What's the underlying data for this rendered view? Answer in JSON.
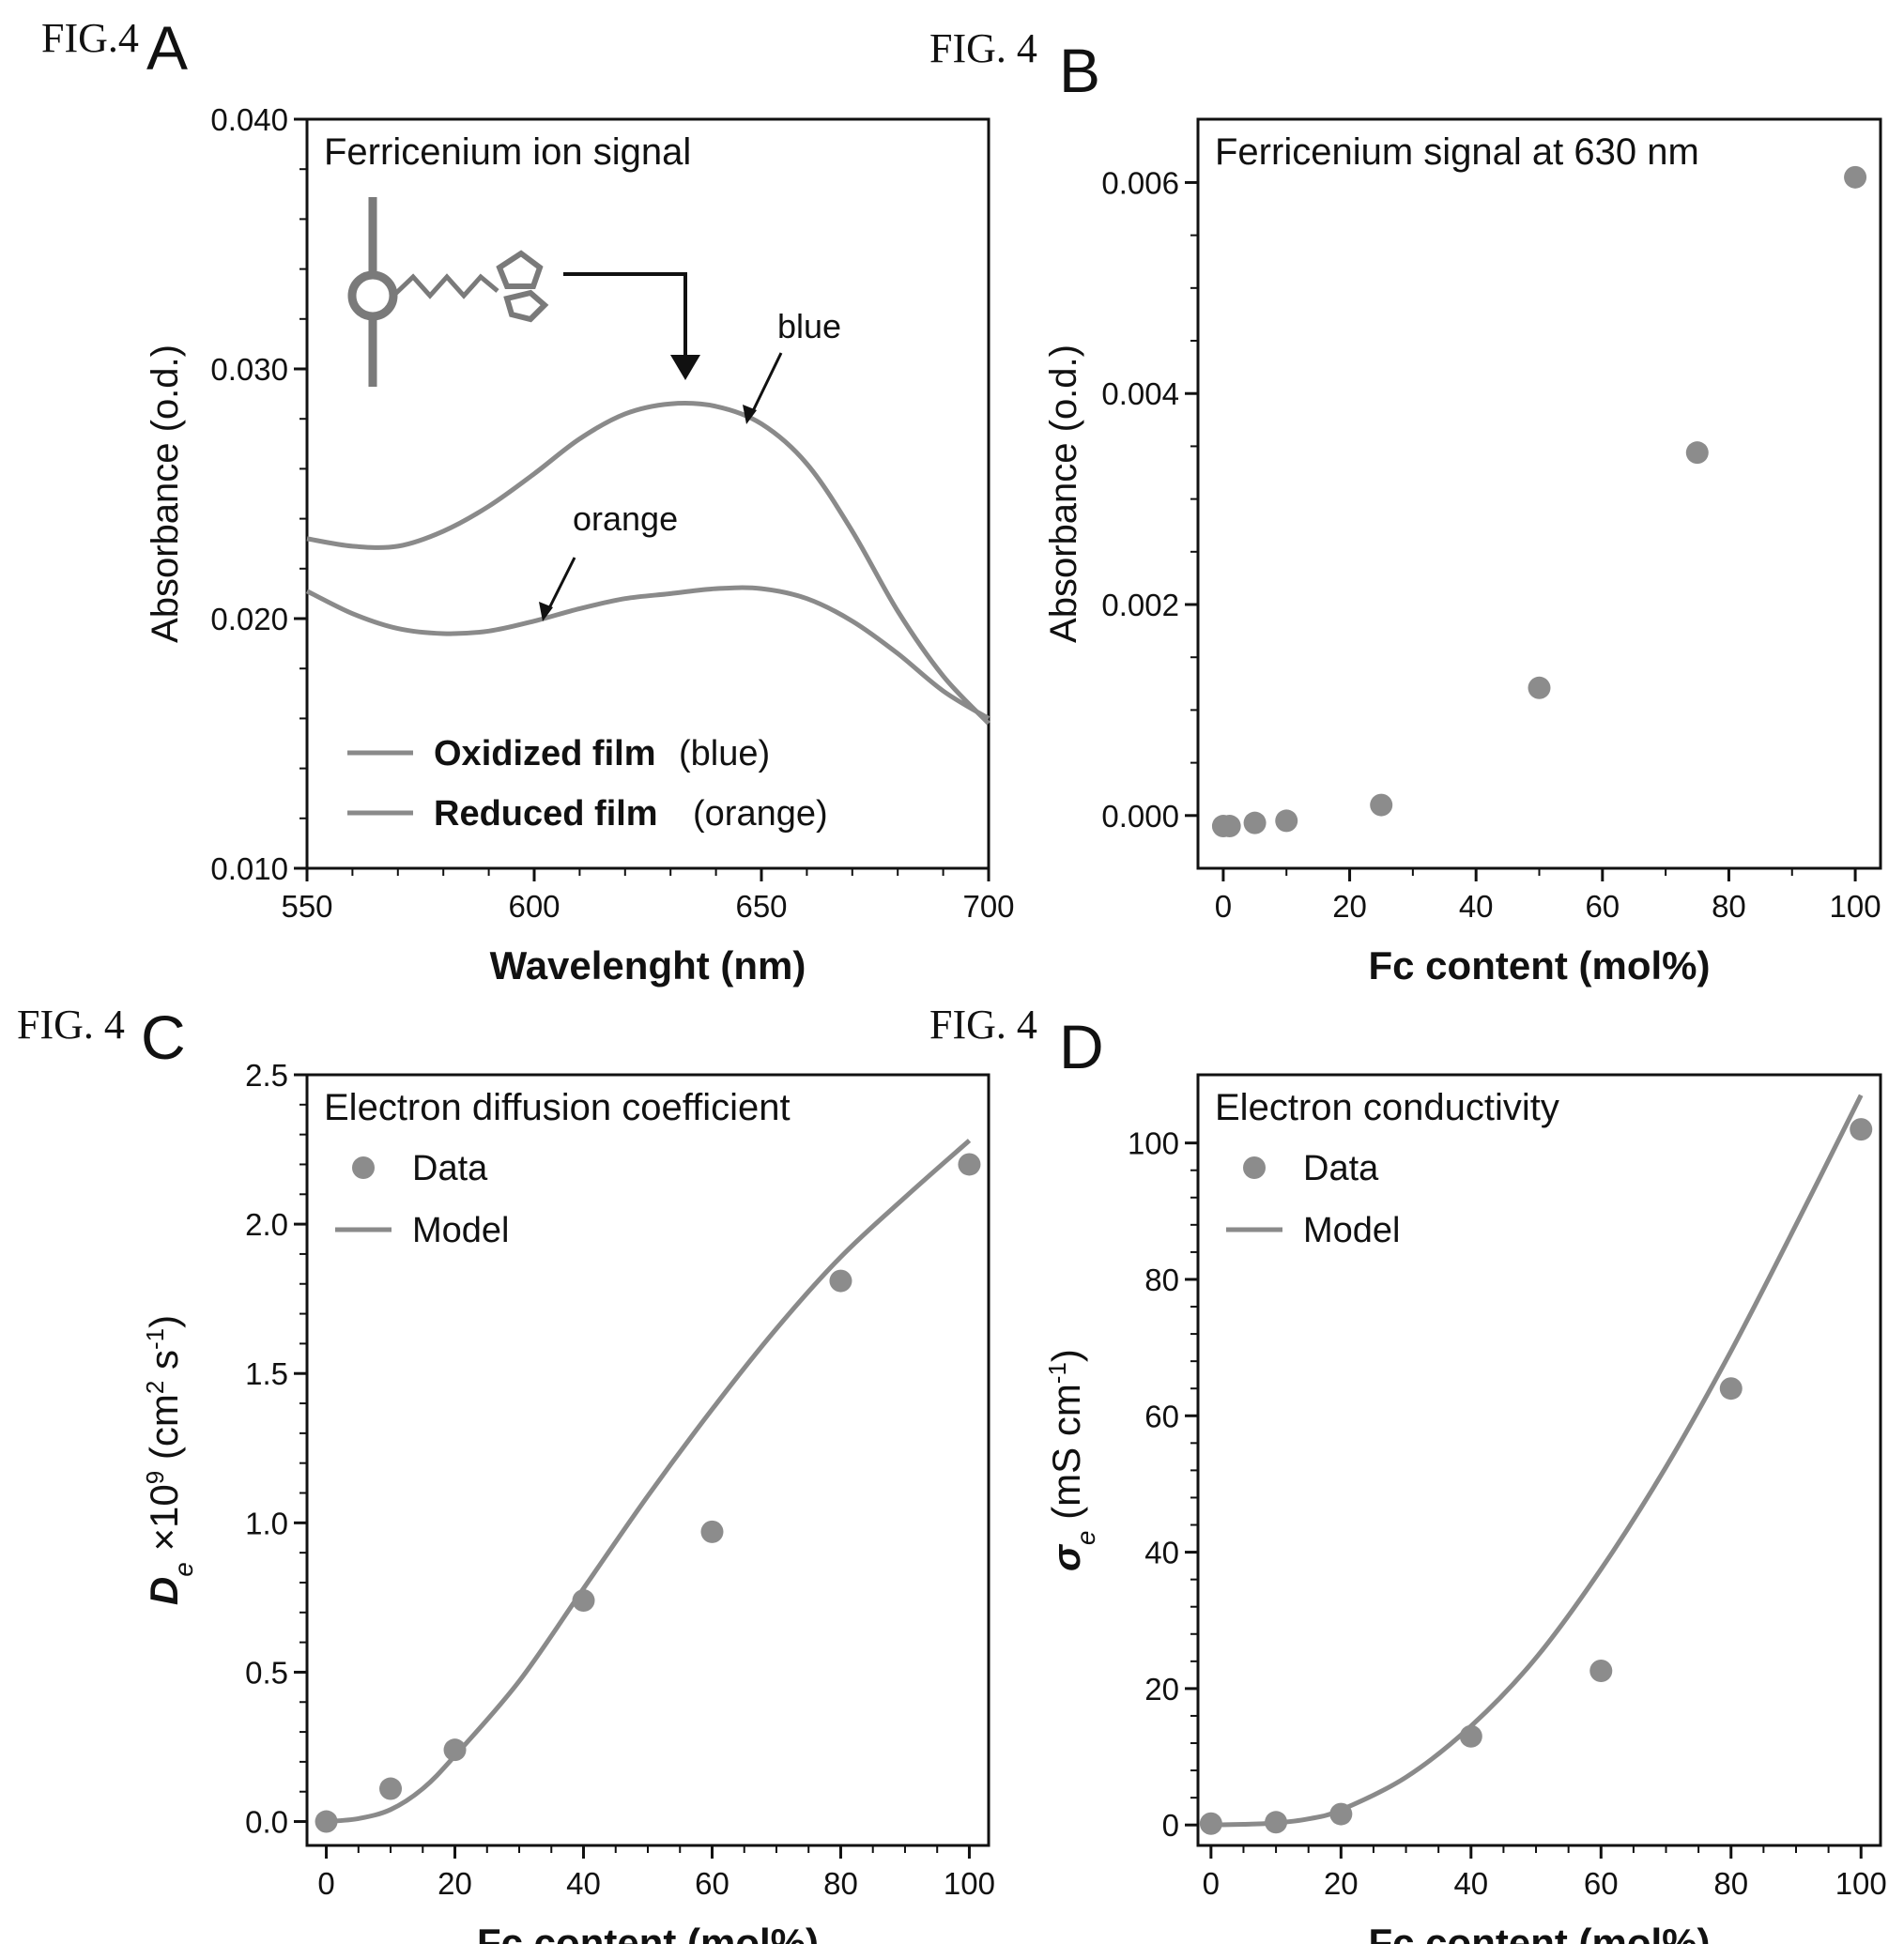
{
  "figure_labels": {
    "A": {
      "prefix": "FIG.4",
      "letter": "A"
    },
    "B": {
      "prefix": "FIG. 4",
      "letter": "B"
    },
    "C": {
      "prefix": "FIG. 4",
      "letter": "C"
    },
    "D": {
      "prefix": "FIG. 4",
      "letter": "D"
    }
  },
  "colors": {
    "series": "#8a8a8a",
    "ink": "#111111",
    "marker": "#8c8c8c"
  },
  "chart_data": [
    {
      "id": "A",
      "type": "line",
      "title": "Ferricenium ion signal",
      "xlabel": "Wavelenght (nm)",
      "ylabel": "Absorbance  (o.d.)",
      "xlim": [
        550,
        700
      ],
      "ylim": [
        0.01,
        0.04
      ],
      "xticks": [
        550,
        600,
        650,
        700
      ],
      "xtick_labels": [
        "550",
        "600",
        "650",
        "700"
      ],
      "yticks": [
        0.01,
        0.02,
        0.03,
        0.04
      ],
      "ytick_labels": [
        "0.010",
        "0.020",
        "0.030",
        "0.040"
      ],
      "series": [
        {
          "name": "Oxidized film",
          "legend_note": "(blue)",
          "x": [
            550,
            560,
            570,
            580,
            590,
            600,
            610,
            620,
            630,
            640,
            650,
            660,
            670,
            680,
            690,
            700
          ],
          "y": [
            0.0232,
            0.0229,
            0.0229,
            0.0235,
            0.0245,
            0.0258,
            0.0272,
            0.0282,
            0.0286,
            0.0285,
            0.0278,
            0.0262,
            0.0235,
            0.0203,
            0.0177,
            0.0158
          ]
        },
        {
          "name": "Reduced film",
          "legend_note": "(orange)",
          "x": [
            550,
            560,
            570,
            580,
            590,
            600,
            610,
            620,
            630,
            640,
            650,
            660,
            670,
            680,
            690,
            700
          ],
          "y": [
            0.0211,
            0.0202,
            0.0196,
            0.0194,
            0.0195,
            0.0199,
            0.0204,
            0.0208,
            0.021,
            0.0212,
            0.0212,
            0.0208,
            0.0199,
            0.0186,
            0.0171,
            0.016
          ]
        }
      ],
      "annotations": {
        "blue": "blue",
        "orange": "orange"
      }
    },
    {
      "id": "B",
      "type": "scatter",
      "title": "Ferricenium signal at 630 nm",
      "xlabel": "Fc content (mol%)",
      "ylabel": "Absorbance  (o.d.)",
      "xlim": [
        -4,
        104
      ],
      "ylim": [
        -0.0005,
        0.0066
      ],
      "xticks": [
        0,
        20,
        40,
        60,
        80,
        100
      ],
      "xtick_labels": [
        "0",
        "20",
        "40",
        "60",
        "80",
        "100"
      ],
      "yticks": [
        0.0,
        0.002,
        0.004,
        0.006
      ],
      "ytick_labels": [
        "0.000",
        "0.002",
        "0.004",
        "0.006"
      ],
      "x": [
        0,
        1,
        5,
        10,
        25,
        50,
        75,
        100
      ],
      "y": [
        -0.0001,
        -0.0001,
        -7e-05,
        -5e-05,
        0.0001,
        0.00121,
        0.00344,
        0.00605
      ]
    },
    {
      "id": "C",
      "type": "scatter",
      "title": "Electron diffusion coefficient",
      "xlabel": "Fc content (mol%)",
      "ylabel": "D",
      "ylabel_sub": "e",
      "ylabel_rest": " ×10",
      "ylabel_exp": "9",
      "ylabel_units": " (cm",
      "ylabel_units_exp": "2",
      "ylabel_units_mid": " s",
      "ylabel_units_exp2": "-1",
      "ylabel_close": ")",
      "xlim": [
        -3,
        103
      ],
      "ylim": [
        -0.08,
        2.5
      ],
      "xticks": [
        0,
        20,
        40,
        60,
        80,
        100
      ],
      "xtick_labels": [
        "0",
        "20",
        "40",
        "60",
        "80",
        "100"
      ],
      "yticks": [
        0.0,
        0.5,
        1.0,
        1.5,
        2.0,
        2.5
      ],
      "ytick_labels": [
        "0.0",
        "0.5",
        "1.0",
        "1.5",
        "2.0",
        "2.5"
      ],
      "series": [
        {
          "name": "Data",
          "x": [
            0,
            10,
            20,
            40,
            60,
            80,
            100
          ],
          "y": [
            0.0,
            0.11,
            0.24,
            0.74,
            0.97,
            1.81,
            2.2
          ]
        },
        {
          "name": "Model",
          "x": [
            0,
            5,
            10,
            15,
            20,
            30,
            40,
            50,
            60,
            70,
            80,
            90,
            100
          ],
          "y": [
            0.0,
            0.01,
            0.04,
            0.11,
            0.22,
            0.47,
            0.78,
            1.09,
            1.38,
            1.65,
            1.89,
            2.09,
            2.28
          ]
        }
      ]
    },
    {
      "id": "D",
      "type": "scatter",
      "title": "Electron conductivity",
      "xlabel": "Fc content (mol%)",
      "ylabel": "σ",
      "ylabel_sub": "e",
      "ylabel_units": " (mS cm",
      "ylabel_units_exp": "-1",
      "ylabel_close": ")",
      "xlim": [
        -2,
        103
      ],
      "ylim": [
        -3,
        110
      ],
      "xticks": [
        0,
        20,
        40,
        60,
        80,
        100
      ],
      "xtick_labels": [
        "0",
        "20",
        "40",
        "60",
        "80",
        "100"
      ],
      "yticks": [
        0,
        20,
        40,
        60,
        80,
        100
      ],
      "ytick_labels": [
        "0",
        "20",
        "40",
        "60",
        "80",
        "100"
      ],
      "series": [
        {
          "name": "Data",
          "x": [
            0,
            10,
            20,
            40,
            60,
            80,
            100
          ],
          "y": [
            0.2,
            0.4,
            1.6,
            13,
            22.6,
            64,
            102
          ]
        },
        {
          "name": "Model",
          "x": [
            0,
            5,
            10,
            15,
            20,
            30,
            40,
            50,
            60,
            70,
            80,
            90,
            100
          ],
          "y": [
            0,
            0.1,
            0.3,
            0.9,
            2.2,
            7,
            14.5,
            24.5,
            37.5,
            52.5,
            69.5,
            88,
            107
          ]
        }
      ]
    }
  ]
}
